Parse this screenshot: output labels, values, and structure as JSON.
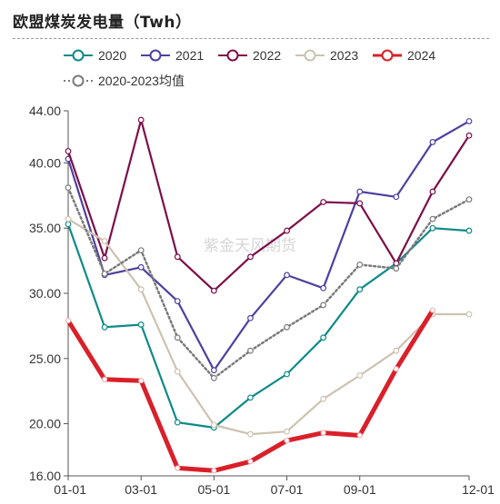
{
  "chart_data": {
    "type": "line",
    "title": "欧盟煤炭发电量（Twh）",
    "watermark": "紫金天风期货",
    "x": [
      "01-01",
      "02-01",
      "03-01",
      "04-01",
      "05-01",
      "06-01",
      "07-01",
      "08-01",
      "09-01",
      "10-01",
      "11-01",
      "12-01"
    ],
    "x_tick_labels": [
      "01-01",
      "03-01",
      "05-01",
      "07-01",
      "09-01",
      "12-01"
    ],
    "y_tick_labels": [
      "16.00",
      "20.00",
      "25.00",
      "30.00",
      "35.00",
      "40.00",
      "44.00"
    ],
    "ylim": [
      16,
      44
    ],
    "legend_position": "top",
    "series": [
      {
        "name": "2020",
        "color": "#0e8a87",
        "style": "solid",
        "values": [
          35.3,
          27.4,
          27.6,
          20.1,
          19.7,
          22.0,
          23.8,
          26.6,
          30.3,
          32.3,
          35.0,
          34.8
        ]
      },
      {
        "name": "2021",
        "color": "#4f3fa0",
        "style": "solid",
        "values": [
          40.3,
          31.4,
          32.0,
          29.4,
          24.1,
          28.1,
          31.4,
          30.4,
          37.8,
          37.4,
          41.6,
          43.2
        ]
      },
      {
        "name": "2022",
        "color": "#7c0e4a",
        "style": "solid",
        "values": [
          40.9,
          32.7,
          43.3,
          32.8,
          30.2,
          32.8,
          34.8,
          37.0,
          36.9,
          32.3,
          37.8,
          42.1
        ]
      },
      {
        "name": "2023",
        "color": "#cdc2b0",
        "style": "solid",
        "values": [
          35.7,
          34.0,
          30.3,
          24.0,
          19.9,
          19.2,
          19.4,
          21.9,
          23.7,
          25.6,
          28.4,
          28.4
        ]
      },
      {
        "name": "2024",
        "color": "#d9202a",
        "style": "thick",
        "values": [
          27.9,
          23.4,
          23.3,
          16.6,
          16.4,
          17.1,
          18.7,
          19.3,
          19.1,
          24.2,
          28.7,
          null
        ]
      },
      {
        "name": "2020-2023均值",
        "color": "#7a7a7a",
        "style": "dotted",
        "values": [
          38.1,
          31.5,
          33.3,
          26.6,
          23.5,
          25.6,
          27.4,
          29.1,
          32.2,
          31.9,
          35.7,
          37.2
        ]
      }
    ]
  }
}
